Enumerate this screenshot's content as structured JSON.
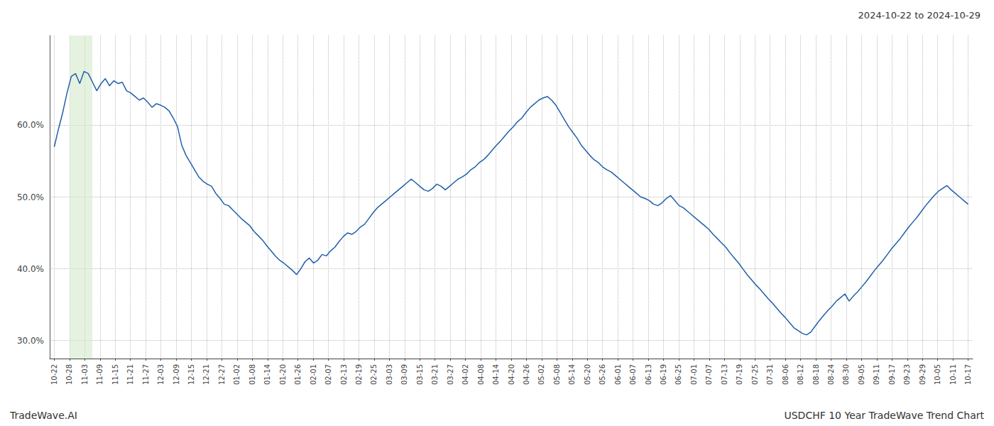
{
  "chart_data": {
    "type": "line",
    "title": "2024-10-22 to 2024-10-29",
    "annotations": [
      "TradeWave.AI",
      "USDCHF 10 Year TradeWave Trend Chart"
    ],
    "color": "#2060a8",
    "grid": true,
    "highlight": {
      "start": 1.0,
      "end": 2.5,
      "color": "#d4eacc"
    },
    "xlim": [
      -0.3,
      60.3
    ],
    "xticks": [
      {
        "value": 0,
        "label": "10-22"
      },
      {
        "value": 1,
        "label": "10-28"
      },
      {
        "value": 2,
        "label": "11-03"
      },
      {
        "value": 3,
        "label": "11-09"
      },
      {
        "value": 4,
        "label": "11-15"
      },
      {
        "value": 5,
        "label": "11-21"
      },
      {
        "value": 6,
        "label": "11-27"
      },
      {
        "value": 7,
        "label": "12-03"
      },
      {
        "value": 8,
        "label": "12-09"
      },
      {
        "value": 9,
        "label": "12-15"
      },
      {
        "value": 10,
        "label": "12-21"
      },
      {
        "value": 11,
        "label": "12-27"
      },
      {
        "value": 12,
        "label": "01-02"
      },
      {
        "value": 13,
        "label": "01-08"
      },
      {
        "value": 14,
        "label": "01-14"
      },
      {
        "value": 15,
        "label": "01-20"
      },
      {
        "value": 16,
        "label": "01-26"
      },
      {
        "value": 17,
        "label": "02-01"
      },
      {
        "value": 18,
        "label": "02-07"
      },
      {
        "value": 19,
        "label": "02-13"
      },
      {
        "value": 20,
        "label": "02-19"
      },
      {
        "value": 21,
        "label": "02-25"
      },
      {
        "value": 22,
        "label": "03-03"
      },
      {
        "value": 23,
        "label": "03-09"
      },
      {
        "value": 24,
        "label": "03-15"
      },
      {
        "value": 25,
        "label": "03-21"
      },
      {
        "value": 26,
        "label": "03-27"
      },
      {
        "value": 27,
        "label": "04-02"
      },
      {
        "value": 28,
        "label": "04-08"
      },
      {
        "value": 29,
        "label": "04-14"
      },
      {
        "value": 30,
        "label": "04-20"
      },
      {
        "value": 31,
        "label": "04-26"
      },
      {
        "value": 32,
        "label": "05-02"
      },
      {
        "value": 33,
        "label": "05-08"
      },
      {
        "value": 34,
        "label": "05-14"
      },
      {
        "value": 35,
        "label": "05-20"
      },
      {
        "value": 36,
        "label": "05-26"
      },
      {
        "value": 37,
        "label": "06-01"
      },
      {
        "value": 38,
        "label": "06-07"
      },
      {
        "value": 39,
        "label": "06-13"
      },
      {
        "value": 40,
        "label": "06-19"
      },
      {
        "value": 41,
        "label": "06-25"
      },
      {
        "value": 42,
        "label": "07-01"
      },
      {
        "value": 43,
        "label": "07-07"
      },
      {
        "value": 44,
        "label": "07-13"
      },
      {
        "value": 45,
        "label": "07-19"
      },
      {
        "value": 46,
        "label": "07-25"
      },
      {
        "value": 47,
        "label": "07-31"
      },
      {
        "value": 48,
        "label": "08-06"
      },
      {
        "value": 49,
        "label": "08-12"
      },
      {
        "value": 50,
        "label": "08-18"
      },
      {
        "value": 51,
        "label": "08-24"
      },
      {
        "value": 52,
        "label": "08-30"
      },
      {
        "value": 53,
        "label": "09-05"
      },
      {
        "value": 54,
        "label": "09-11"
      },
      {
        "value": 55,
        "label": "09-17"
      },
      {
        "value": 56,
        "label": "09-23"
      },
      {
        "value": 57,
        "label": "09-29"
      },
      {
        "value": 58,
        "label": "10-05"
      },
      {
        "value": 59,
        "label": "10-11"
      },
      {
        "value": 60,
        "label": "10-17"
      }
    ],
    "ylim": [
      0.275,
      0.725
    ],
    "yticks": [
      {
        "value": 0.3,
        "label": "30.0%"
      },
      {
        "value": 0.4,
        "label": "40.0%"
      },
      {
        "value": 0.5,
        "label": "50.0%"
      },
      {
        "value": 0.6,
        "label": "60.0%"
      }
    ],
    "values": [
      0.57,
      0.595,
      0.618,
      0.645,
      0.668,
      0.672,
      0.658,
      0.675,
      0.672,
      0.66,
      0.648,
      0.658,
      0.665,
      0.655,
      0.662,
      0.658,
      0.66,
      0.648,
      0.645,
      0.64,
      0.635,
      0.638,
      0.632,
      0.625,
      0.63,
      0.628,
      0.625,
      0.62,
      0.61,
      0.598,
      0.572,
      0.558,
      0.548,
      0.538,
      0.528,
      0.522,
      0.518,
      0.515,
      0.505,
      0.498,
      0.49,
      0.488,
      0.482,
      0.476,
      0.47,
      0.465,
      0.46,
      0.452,
      0.446,
      0.44,
      0.432,
      0.425,
      0.418,
      0.412,
      0.408,
      0.403,
      0.398,
      0.392,
      0.4,
      0.41,
      0.415,
      0.408,
      0.412,
      0.42,
      0.418,
      0.425,
      0.43,
      0.438,
      0.445,
      0.45,
      0.448,
      0.452,
      0.458,
      0.462,
      0.47,
      0.478,
      0.485,
      0.49,
      0.495,
      0.5,
      0.505,
      0.51,
      0.515,
      0.52,
      0.525,
      0.52,
      0.515,
      0.51,
      0.508,
      0.512,
      0.518,
      0.515,
      0.51,
      0.515,
      0.52,
      0.525,
      0.528,
      0.532,
      0.538,
      0.542,
      0.548,
      0.552,
      0.558,
      0.565,
      0.572,
      0.578,
      0.585,
      0.592,
      0.598,
      0.605,
      0.61,
      0.618,
      0.625,
      0.63,
      0.635,
      0.638,
      0.64,
      0.635,
      0.628,
      0.618,
      0.608,
      0.598,
      0.59,
      0.582,
      0.572,
      0.565,
      0.558,
      0.552,
      0.548,
      0.542,
      0.538,
      0.535,
      0.53,
      0.525,
      0.52,
      0.515,
      0.51,
      0.505,
      0.5,
      0.498,
      0.495,
      0.49,
      0.488,
      0.492,
      0.498,
      0.502,
      0.495,
      0.488,
      0.485,
      0.48,
      0.475,
      0.47,
      0.465,
      0.46,
      0.455,
      0.448,
      0.442,
      0.436,
      0.43,
      0.422,
      0.415,
      0.408,
      0.4,
      0.392,
      0.385,
      0.378,
      0.372,
      0.365,
      0.358,
      0.352,
      0.345,
      0.338,
      0.332,
      0.325,
      0.318,
      0.314,
      0.31,
      0.308,
      0.312,
      0.32,
      0.328,
      0.335,
      0.342,
      0.348,
      0.355,
      0.36,
      0.365,
      0.355,
      0.362,
      0.368,
      0.375,
      0.382,
      0.39,
      0.398,
      0.405,
      0.412,
      0.42,
      0.428,
      0.435,
      0.442,
      0.45,
      0.458,
      0.465,
      0.472,
      0.48,
      0.488,
      0.495,
      0.502,
      0.508,
      0.512,
      0.516,
      0.51,
      0.505,
      0.5,
      0.495,
      0.49
    ]
  }
}
